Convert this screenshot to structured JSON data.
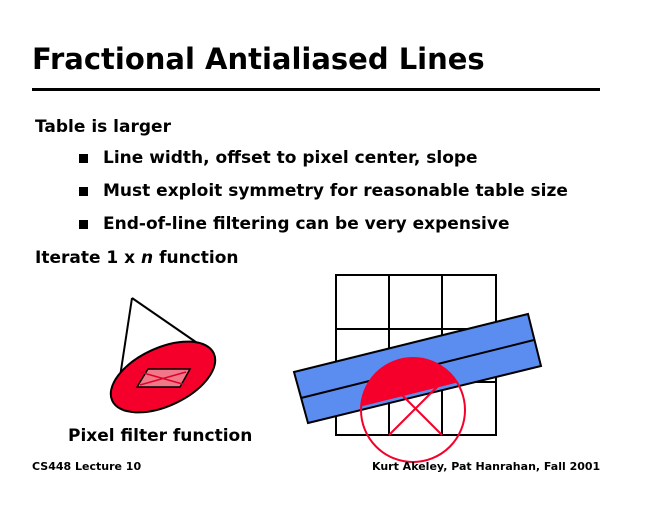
{
  "slide": {
    "title": "Fractional Antialiased Lines",
    "bullets": [
      {
        "text": "Table is larger",
        "level": 1
      },
      {
        "text": "Line width, offset to pixel center, slope",
        "level": 2
      },
      {
        "text": "Must exploit symmetry for reasonable table size",
        "level": 2
      },
      {
        "text": "End-of-line filtering can be very expensive",
        "level": 2
      }
    ],
    "iterate": {
      "pre": "Iterate 1 x ",
      "var": "n",
      "post": " function"
    },
    "caption": "Pixel filter function",
    "footer_left": "CS448 Lecture 10",
    "footer_right": "Kurt Akeley, Pat Hanrahan, Fall 2001"
  },
  "colors": {
    "red": "#f5002a",
    "blue": "#5b8cf0",
    "pink": "#f07888"
  }
}
